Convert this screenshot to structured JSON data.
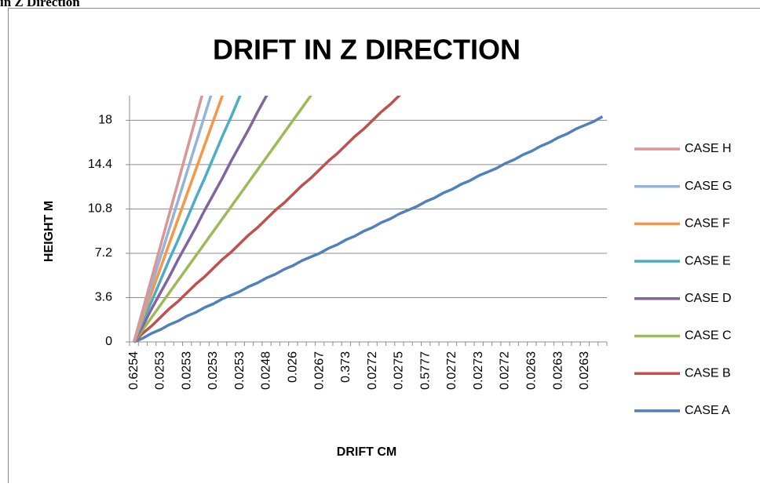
{
  "caption": "in Z Direction",
  "chart_data": {
    "type": "line",
    "title": "DRIFT IN Z DIRECTION",
    "x_label": "DRIFT CM",
    "y_label": "HEIGHT M",
    "categories": [
      "0.6254",
      null,
      null,
      "0.0253",
      null,
      null,
      "0.0253",
      null,
      null,
      "0.0253",
      null,
      null,
      "0.0253",
      null,
      null,
      "0.0248",
      null,
      null,
      "0.026",
      null,
      null,
      "0.0267",
      null,
      null,
      "0.373",
      null,
      null,
      "0.0272",
      null,
      null,
      "0.0275",
      null,
      null,
      "0.5777",
      null,
      null,
      "0.0272",
      null,
      null,
      "0.0273",
      null,
      null,
      "0.0272",
      null,
      null,
      "0.0263",
      null,
      null,
      "0.0263",
      null,
      null,
      "0.0263",
      null,
      null
    ],
    "ylim": [
      0,
      20
    ],
    "yticks": [
      0,
      3.6,
      7.2,
      10.8,
      14.4,
      18
    ],
    "grid": true,
    "legend": "right",
    "series": [
      {
        "name": "CASE A",
        "color": "#4f81bd",
        "values": [
          0,
          0.3,
          0.7,
          1,
          1.4,
          1.7,
          2.1,
          2.4,
          2.8,
          3.1,
          3.5,
          3.8,
          4.1,
          4.5,
          4.8,
          5.2,
          5.5,
          5.9,
          6.2,
          6.6,
          6.9,
          7.2,
          7.6,
          7.9,
          8.3,
          8.6,
          9,
          9.3,
          9.7,
          10,
          10.4,
          10.7,
          11,
          11.4,
          11.7,
          12.1,
          12.4,
          12.8,
          13.1,
          13.5,
          13.8,
          14.1,
          14.5,
          14.8,
          15.2,
          15.5,
          15.9,
          16.2,
          16.6,
          16.9,
          17.3,
          17.6,
          17.9,
          18.3
        ]
      },
      {
        "name": "CASE B",
        "color": "#c0504d",
        "values": [
          0,
          0.7,
          1.3,
          2,
          2.7,
          3.3,
          4,
          4.7,
          5.3,
          6,
          6.7,
          7.3,
          8,
          8.7,
          9.3,
          10,
          10.7,
          11.3,
          12,
          12.7,
          13.3,
          14,
          14.7,
          15.3,
          16,
          16.7,
          17.3,
          18,
          18.7,
          19.3,
          20,
          20.7,
          null,
          null,
          null,
          null,
          null,
          null,
          null,
          null,
          null,
          null,
          null,
          null,
          null,
          null,
          null,
          null,
          null,
          null,
          null,
          null,
          null,
          null
        ]
      },
      {
        "name": "CASE C",
        "color": "#9bbb59",
        "values": [
          0,
          1,
          2,
          3,
          4,
          5,
          6,
          7,
          8,
          9,
          10,
          11,
          12,
          13,
          14,
          15,
          16,
          17,
          18,
          19,
          20,
          21,
          null,
          null,
          null,
          null,
          null,
          null,
          null,
          null,
          null,
          null,
          null,
          null,
          null,
          null,
          null,
          null,
          null,
          null,
          null,
          null,
          null,
          null,
          null,
          null,
          null,
          null,
          null,
          null,
          null,
          null,
          null,
          null
        ]
      },
      {
        "name": "CASE D",
        "color": "#8064a2",
        "values": [
          0,
          1.3,
          2.7,
          4,
          5.3,
          6.7,
          8,
          9.3,
          10.7,
          12,
          13.3,
          14.7,
          16,
          17.3,
          18.7,
          20,
          21.3,
          null,
          null,
          null,
          null,
          null,
          null,
          null,
          null,
          null,
          null,
          null,
          null,
          null,
          null,
          null,
          null,
          null,
          null,
          null,
          null,
          null,
          null,
          null,
          null,
          null,
          null,
          null,
          null,
          null,
          null,
          null,
          null,
          null,
          null,
          null,
          null,
          null
        ]
      },
      {
        "name": "CASE E",
        "color": "#4bacc6",
        "values": [
          0,
          1.7,
          3.3,
          5,
          6.7,
          8.3,
          10,
          11.7,
          13.3,
          15,
          16.7,
          18.3,
          20,
          21.7,
          null,
          null,
          null,
          null,
          null,
          null,
          null,
          null,
          null,
          null,
          null,
          null,
          null,
          null,
          null,
          null,
          null,
          null,
          null,
          null,
          null,
          null,
          null,
          null,
          null,
          null,
          null,
          null,
          null,
          null,
          null,
          null,
          null,
          null,
          null,
          null,
          null,
          null,
          null,
          null
        ]
      },
      {
        "name": "CASE F",
        "color": "#f79646",
        "values": [
          0,
          2,
          4,
          6,
          8,
          10,
          12,
          14,
          16,
          18,
          20,
          22,
          null,
          null,
          null,
          null,
          null,
          null,
          null,
          null,
          null,
          null,
          null,
          null,
          null,
          null,
          null,
          null,
          null,
          null,
          null,
          null,
          null,
          null,
          null,
          null,
          null,
          null,
          null,
          null,
          null,
          null,
          null,
          null,
          null,
          null,
          null,
          null,
          null,
          null,
          null,
          null,
          null,
          null
        ]
      },
      {
        "name": "CASE G",
        "color": "#95b3d7",
        "values": [
          0,
          2.3,
          4.6,
          6.9,
          9.2,
          11.5,
          13.8,
          16.1,
          18.4,
          20.7,
          null,
          null,
          null,
          null,
          null,
          null,
          null,
          null,
          null,
          null,
          null,
          null,
          null,
          null,
          null,
          null,
          null,
          null,
          null,
          null,
          null,
          null,
          null,
          null,
          null,
          null,
          null,
          null,
          null,
          null,
          null,
          null,
          null,
          null,
          null,
          null,
          null,
          null,
          null,
          null,
          null,
          null,
          null,
          null
        ]
      },
      {
        "name": "CASE H",
        "color": "#d99694",
        "values": [
          0,
          2.6,
          5.2,
          7.8,
          10.4,
          13,
          15.6,
          18.2,
          20.8,
          null,
          null,
          null,
          null,
          null,
          null,
          null,
          null,
          null,
          null,
          null,
          null,
          null,
          null,
          null,
          null,
          null,
          null,
          null,
          null,
          null,
          null,
          null,
          null,
          null,
          null,
          null,
          null,
          null,
          null,
          null,
          null,
          null,
          null,
          null,
          null,
          null,
          null,
          null,
          null,
          null,
          null,
          null,
          null,
          null
        ]
      }
    ]
  }
}
